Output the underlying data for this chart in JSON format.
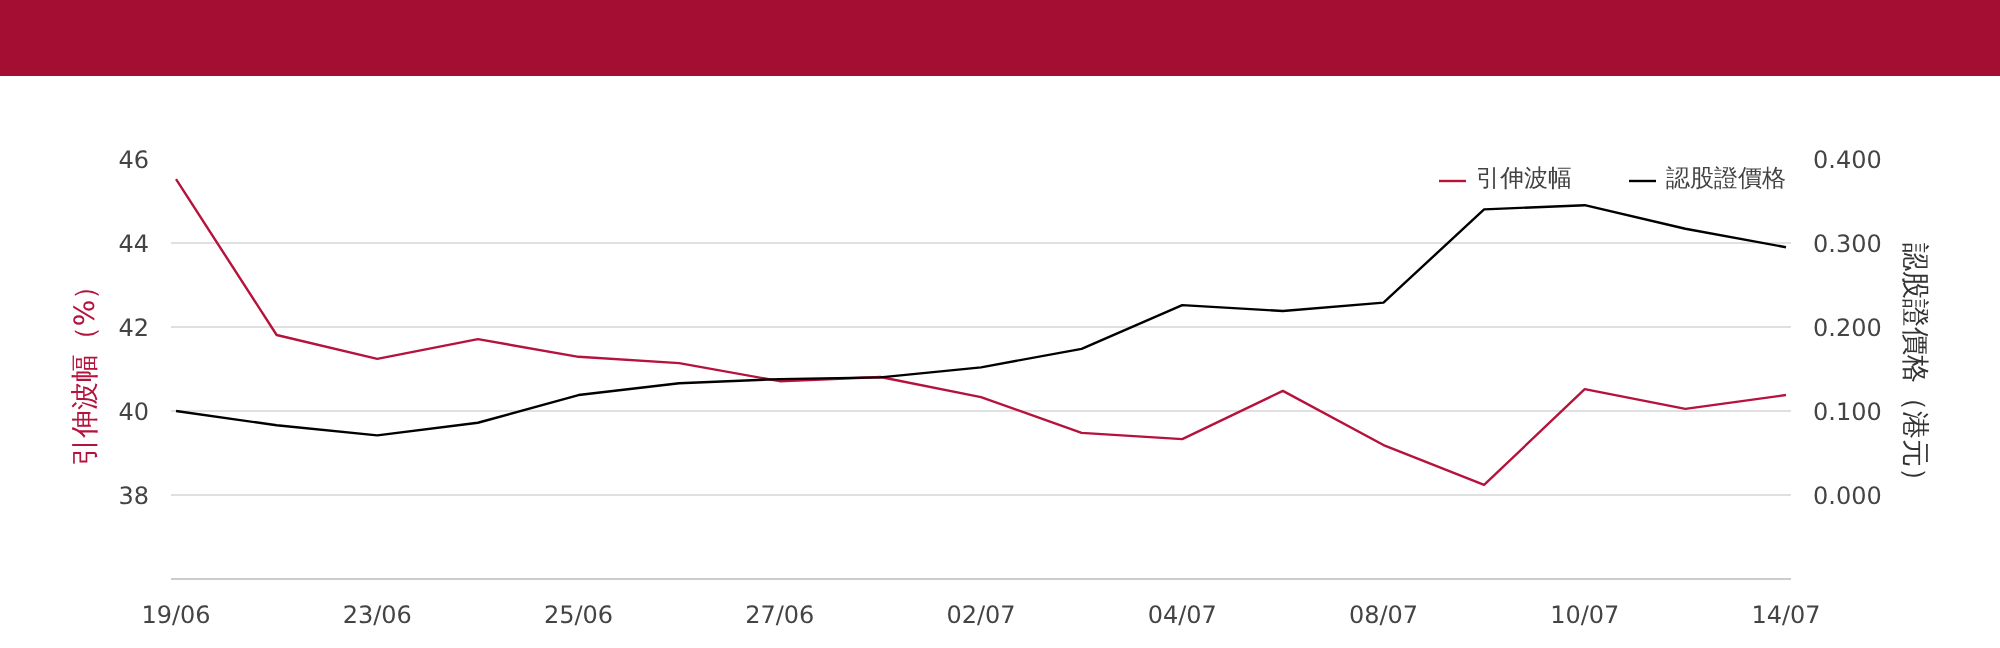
{
  "chart_data": {
    "type": "line",
    "categories": [
      "19/06",
      null,
      "23/06",
      null,
      "25/06",
      null,
      "27/06",
      null,
      "02/07",
      null,
      "04/07",
      null,
      "08/07",
      null,
      "10/07",
      null,
      "14/07"
    ],
    "ylabel": "引伸波幅（%）",
    "y2label": "認股證價格（港元）",
    "ylim": [
      36,
      46
    ],
    "yticks": [
      38,
      40,
      42,
      44,
      46
    ],
    "y2lim": [
      -0.1,
      0.4
    ],
    "y2ticks": [
      {
        "value": 0,
        "label": "0.000"
      },
      {
        "value": 0.1,
        "label": "0.100"
      },
      {
        "value": 0.2,
        "label": "0.200"
      },
      {
        "value": 0.3,
        "label": "0.300"
      },
      {
        "value": 0.4,
        "label": "0.400"
      }
    ],
    "grid": "y",
    "legend": "top right",
    "marker": "none",
    "line_style": "solid",
    "series": [
      {
        "name": "引伸波幅",
        "color": "#b5123c",
        "values": [
          45.52,
          41.81,
          41.24,
          41.71,
          41.29,
          41.14,
          40.71,
          40.81,
          40.33,
          39.48,
          39.33,
          40.48,
          39.19,
          38.24,
          40.52,
          40.05,
          40.38
        ]
      },
      {
        "name": "認股證價格",
        "color": "#000000",
        "axis": "y2",
        "values": [
          0.1,
          0.083,
          0.071,
          0.086,
          0.119,
          0.133,
          0.138,
          0.14,
          0.152,
          0.174,
          0.226,
          0.219,
          0.229,
          0.34,
          0.345,
          0.317,
          0.295
        ]
      }
    ]
  }
}
